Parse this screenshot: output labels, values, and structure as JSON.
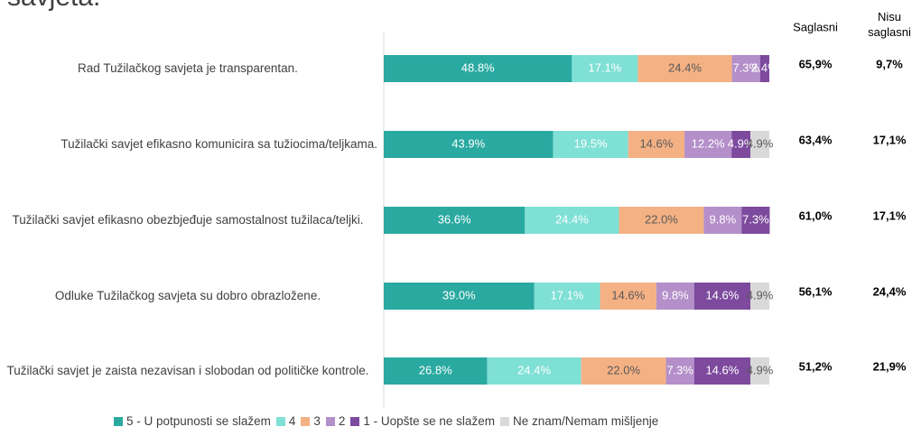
{
  "chart_data": {
    "type": "stacked-barh",
    "title": "savjeta.",
    "categories": [
      "Rad Tužilačkog savjeta je transparentan.",
      "Tužilački savjet efikasno komunicira sa tužiocima/teljkama.",
      "Tužilački savjet efikasno obezbjeđuje samostalnost tužilaca/teljki.",
      "Odluke Tužilačkog savjeta su dobro obrazložene.",
      "Tužilački savjet je zaista nezavisan i slobodan od političke kontrole."
    ],
    "xlim": [
      0,
      100
    ],
    "series": [
      {
        "name": "5 - U potpunosti se slažem",
        "color": "#2aa9a1",
        "values": [
          48.8,
          43.9,
          36.6,
          39.0,
          26.8
        ],
        "value_labels": [
          "48.8%",
          "43.9%",
          "36.6%",
          "39.0%",
          "26.8%"
        ]
      },
      {
        "name": "4",
        "color": "#7fe0d6",
        "values": [
          17.1,
          19.5,
          24.4,
          17.1,
          24.4
        ],
        "value_labels": [
          "17.1%",
          "19.5%",
          "24.4%",
          "17.1%",
          "24.4%"
        ]
      },
      {
        "name": "3",
        "color": "#f4b184",
        "values": [
          24.4,
          14.6,
          22.0,
          14.6,
          22.0
        ],
        "value_labels": [
          "24.4%",
          "14.6%",
          "22.0%",
          "14.6%",
          "22.0%"
        ]
      },
      {
        "name": "2",
        "color": "#b48fc9",
        "values": [
          7.3,
          12.2,
          9.8,
          9.8,
          7.3
        ],
        "value_labels": [
          "7.3%",
          "12.2%",
          "9.8%",
          "9.8%",
          "7.3%"
        ]
      },
      {
        "name": "1 - Uopšte se ne slažem",
        "color": "#7d4a9e",
        "values": [
          2.4,
          4.9,
          7.3,
          14.6,
          14.6
        ],
        "value_labels": [
          "2.4%",
          "4.9%",
          "7.3%",
          "14.6%",
          "14.6%"
        ]
      },
      {
        "name": "Ne znam/Nemam mišljenje",
        "color": "#d9d9d9",
        "values": [
          null,
          4.9,
          null,
          4.9,
          4.9
        ],
        "value_labels": [
          null,
          "4.9%",
          null,
          "4.9%",
          "4.9%"
        ]
      }
    ],
    "summary": {
      "headers": [
        "Saglasni",
        "Nisu saglasni"
      ],
      "rows": [
        [
          "65,9%",
          "9,7%"
        ],
        [
          "63,4%",
          "17,1%"
        ],
        [
          "61,0%",
          "17,1%"
        ],
        [
          "56,1%",
          "24,4%"
        ],
        [
          "51,2%",
          "21,9%"
        ]
      ]
    },
    "legend": "bottom"
  }
}
